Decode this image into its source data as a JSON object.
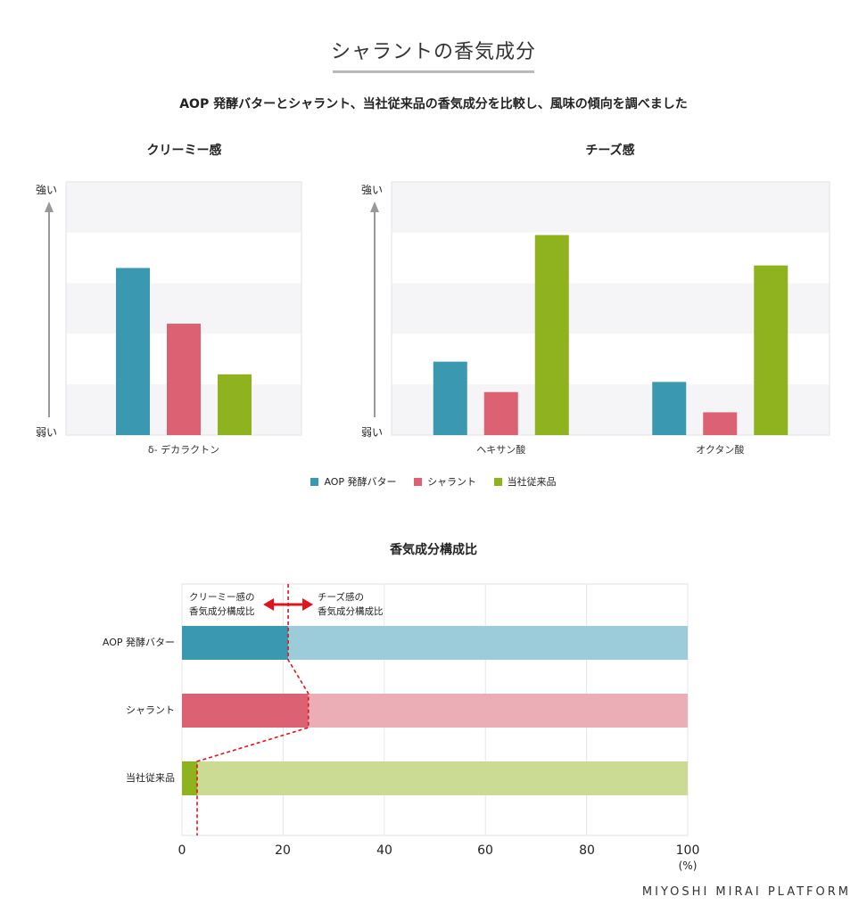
{
  "title": "シャラントの香気成分",
  "subtitle": "AOP 発酵バターとシャラント、当社従来品の香気成分を比較し、風味の傾向を調べました",
  "axis": {
    "strong": "強い",
    "weak": "弱い"
  },
  "legend": [
    {
      "label": "AOP 発酵バター",
      "color": "#3a98b1"
    },
    {
      "label": "シャラント",
      "color": "#dc6273"
    },
    {
      "label": "当社従来品",
      "color": "#8fb21f"
    }
  ],
  "chart_data": [
    {
      "type": "bar",
      "title": "クリーミー感",
      "categories": [
        "δ- デカラクトン"
      ],
      "series": [
        {
          "name": "AOP 発酵バター",
          "values": [
            0.66
          ]
        },
        {
          "name": "シャラント",
          "values": [
            0.44
          ]
        },
        {
          "name": "当社従来品",
          "values": [
            0.24
          ]
        }
      ],
      "ylabel_top": "強い",
      "ylabel_bottom": "弱い",
      "ylim": [
        0,
        1
      ]
    },
    {
      "type": "bar",
      "title": "チーズ感",
      "categories": [
        "ヘキサン酸",
        "オクタン酸"
      ],
      "series": [
        {
          "name": "AOP 発酵バター",
          "values": [
            0.29,
            0.21
          ]
        },
        {
          "name": "シャラント",
          "values": [
            0.17,
            0.09
          ]
        },
        {
          "name": "当社従来品",
          "values": [
            0.79,
            0.67
          ]
        }
      ],
      "ylabel_top": "強い",
      "ylabel_bottom": "弱い",
      "ylim": [
        0,
        1
      ]
    },
    {
      "type": "bar",
      "orientation": "horizontal-stacked",
      "title": "香気成分構成比",
      "categories": [
        "AOP 発酵バター",
        "シャラント",
        "当社従来品"
      ],
      "series": [
        {
          "name": "クリーミー感の香気成分構成比",
          "values": [
            21,
            25,
            3
          ]
        },
        {
          "name": "チーズ感の香気成分構成比",
          "values": [
            79,
            75,
            97
          ]
        }
      ],
      "xticks": [
        "0",
        "20",
        "40",
        "60",
        "80",
        "100"
      ],
      "xunit": "(%)",
      "xlim": [
        0,
        100
      ],
      "annotation_left": [
        "クリーミー感の",
        "香気成分構成比"
      ],
      "annotation_right": [
        "チーズ感の",
        "香気成分構成比"
      ],
      "colors_dark": [
        "#3a98b1",
        "#dc6273",
        "#8fb21f"
      ],
      "colors_light": [
        "#9ccbd9",
        "#ecaeb6",
        "#cbdb94"
      ],
      "guide_color": "#e0141c"
    }
  ],
  "brand": "MIYOSHI MIRAI PLATFORM"
}
